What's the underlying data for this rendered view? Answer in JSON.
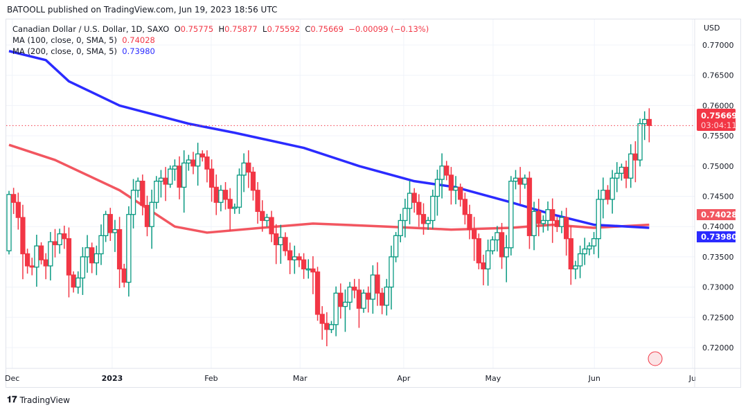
{
  "published": "BATOOLL published on TradingView.com, Jun 19, 2023 18:56 UTC",
  "legend": {
    "symbol": "Canadian Dollar / U.S. Dollar, 1D, SAXO",
    "o_label": "O",
    "o": "0.75775",
    "h_label": "H",
    "h": "0.75877",
    "l_label": "L",
    "l": "0.75592",
    "c_label": "C",
    "c": "0.75669",
    "change": "−0.00099 (−0.13%)",
    "ma100_label": "MA (100, close, 0, SMA, 5)",
    "ma100": "0.74028",
    "ma200_label": "MA (200, close, 0, SMA, 5)",
    "ma200": "0.73980"
  },
  "footer": "TradingView",
  "colors": {
    "up": "#089981",
    "down": "#f23645",
    "ma100": "#f25660",
    "ma200": "#2b2bff"
  },
  "chart_data": {
    "type": "candlestick",
    "currency": "USD",
    "ylim": [
      0.7175,
      0.7725
    ],
    "y_ticks": [
      "0.77000",
      "0.76500",
      "0.76000",
      "0.75500",
      "0.75000",
      "0.74500",
      "0.74000",
      "0.73500",
      "0.73000",
      "0.72500",
      "0.72000"
    ],
    "x_ticks": [
      {
        "label": "Dec",
        "i": 0.7
      },
      {
        "label": "2023",
        "i": 22.4,
        "bold": true
      },
      {
        "label": "Feb",
        "i": 43.9
      },
      {
        "label": "Mar",
        "i": 63.2
      },
      {
        "label": "Apr",
        "i": 85.7
      },
      {
        "label": "May",
        "i": 105.1
      },
      {
        "label": "Jun",
        "i": 127.1
      },
      {
        "label": "Ju",
        "i": 148.4
      }
    ],
    "last_price": "0.75669",
    "countdown": "03:04:11",
    "ma100_value": "0.74028",
    "ma200_value": "0.73980",
    "first_open": 0.736,
    "closes": [
      0.7453,
      0.744,
      0.7415,
      0.7355,
      0.7335,
      0.7333,
      0.7368,
      0.7345,
      0.7335,
      0.7375,
      0.737,
      0.7388,
      0.738,
      0.732,
      0.73,
      0.7315,
      0.735,
      0.7365,
      0.734,
      0.7355,
      0.7385,
      0.742,
      0.739,
      0.7395,
      0.733,
      0.7308,
      0.742,
      0.746,
      0.7475,
      0.7435,
      0.74,
      0.744,
      0.7475,
      0.748,
      0.747,
      0.7495,
      0.75,
      0.7465,
      0.7505,
      0.751,
      0.75,
      0.752,
      0.7515,
      0.7495,
      0.7465,
      0.744,
      0.746,
      0.7445,
      0.743,
      0.7432,
      0.7485,
      0.7505,
      0.749,
      0.746,
      0.7425,
      0.741,
      0.7415,
      0.7388,
      0.737,
      0.7382,
      0.736,
      0.7345,
      0.735,
      0.7345,
      0.733,
      0.733,
      0.7325,
      0.7255,
      0.724,
      0.723,
      0.7238,
      0.729,
      0.7268,
      0.7275,
      0.73,
      0.7295,
      0.7265,
      0.729,
      0.728,
      0.732,
      0.729,
      0.727,
      0.73,
      0.735,
      0.7385,
      0.741,
      0.743,
      0.7455,
      0.744,
      0.742,
      0.7405,
      0.741,
      0.745,
      0.7478,
      0.75,
      0.7485,
      0.746,
      0.7465,
      0.7445,
      0.742,
      0.7395,
      0.738,
      0.734,
      0.733,
      0.736,
      0.7378,
      0.739,
      0.735,
      0.7365,
      0.7475,
      0.748,
      0.747,
      0.748,
      0.7385,
      0.7425,
      0.7405,
      0.741,
      0.7428,
      0.741,
      0.74,
      0.7415,
      0.738,
      0.733,
      0.7335,
      0.7355,
      0.7363,
      0.7368,
      0.738,
      0.7445,
      0.746,
      0.7445,
      0.748,
      0.7488,
      0.7498,
      0.748,
      0.752,
      0.751,
      0.757,
      0.7577,
      0.7567
    ],
    "ma100": [
      [
        0,
        0.7535
      ],
      [
        10,
        0.751
      ],
      [
        24,
        0.746
      ],
      [
        36,
        0.74
      ],
      [
        43,
        0.739
      ],
      [
        58,
        0.74
      ],
      [
        66,
        0.7405
      ],
      [
        82,
        0.74
      ],
      [
        96,
        0.7395
      ],
      [
        109,
        0.7398
      ],
      [
        118,
        0.7403
      ],
      [
        127,
        0.7398
      ],
      [
        139,
        0.7403
      ]
    ],
    "ma200": [
      [
        0,
        0.769
      ],
      [
        8,
        0.7675
      ],
      [
        13,
        0.764
      ],
      [
        24,
        0.76
      ],
      [
        39,
        0.757
      ],
      [
        49,
        0.7555
      ],
      [
        64,
        0.753
      ],
      [
        76,
        0.75
      ],
      [
        88,
        0.7475
      ],
      [
        97,
        0.7465
      ],
      [
        109,
        0.744
      ],
      [
        118,
        0.742
      ],
      [
        127,
        0.7403
      ],
      [
        139,
        0.7398
      ]
    ]
  }
}
